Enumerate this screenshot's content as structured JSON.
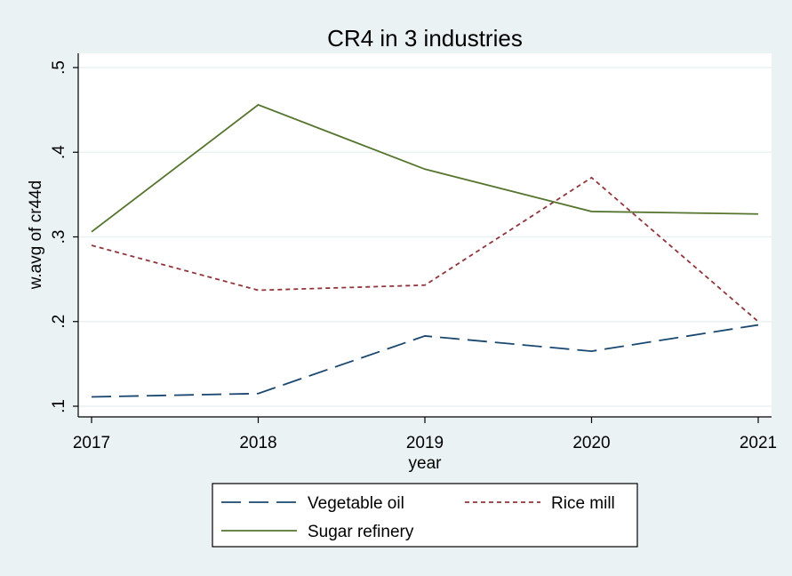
{
  "chart_data": {
    "type": "line",
    "title": "CR4 in 3 industries",
    "xlabel": "year",
    "ylabel": "w.avg of cr44d",
    "x": [
      2017,
      2018,
      2019,
      2020,
      2021
    ],
    "xlim": [
      2017,
      2021
    ],
    "ylim": [
      0.1,
      0.5
    ],
    "yticks": [
      0.1,
      0.2,
      0.3,
      0.4,
      0.5
    ],
    "ytick_labels": [
      ".1",
      ".2",
      ".3",
      ".4",
      ".5"
    ],
    "xtick_labels": [
      "2017",
      "2018",
      "2019",
      "2020",
      "2021"
    ],
    "grid": true,
    "legend_position": "bottom",
    "series": [
      {
        "name": "Vegetable oil",
        "values": [
          0.111,
          0.115,
          0.183,
          0.165,
          0.196
        ],
        "color": "#1a476f",
        "style": "long-dash"
      },
      {
        "name": "Rice mill",
        "values": [
          0.29,
          0.237,
          0.243,
          0.37,
          0.2
        ],
        "color": "#90353b",
        "style": "short-dash"
      },
      {
        "name": "Sugar refinery",
        "values": [
          0.306,
          0.456,
          0.38,
          0.33,
          0.327
        ],
        "color": "#55752f",
        "style": "solid"
      }
    ],
    "colors": {
      "background": "#eaf2f3",
      "plot_background": "#ffffff",
      "grid": "#eaf2f3"
    }
  }
}
